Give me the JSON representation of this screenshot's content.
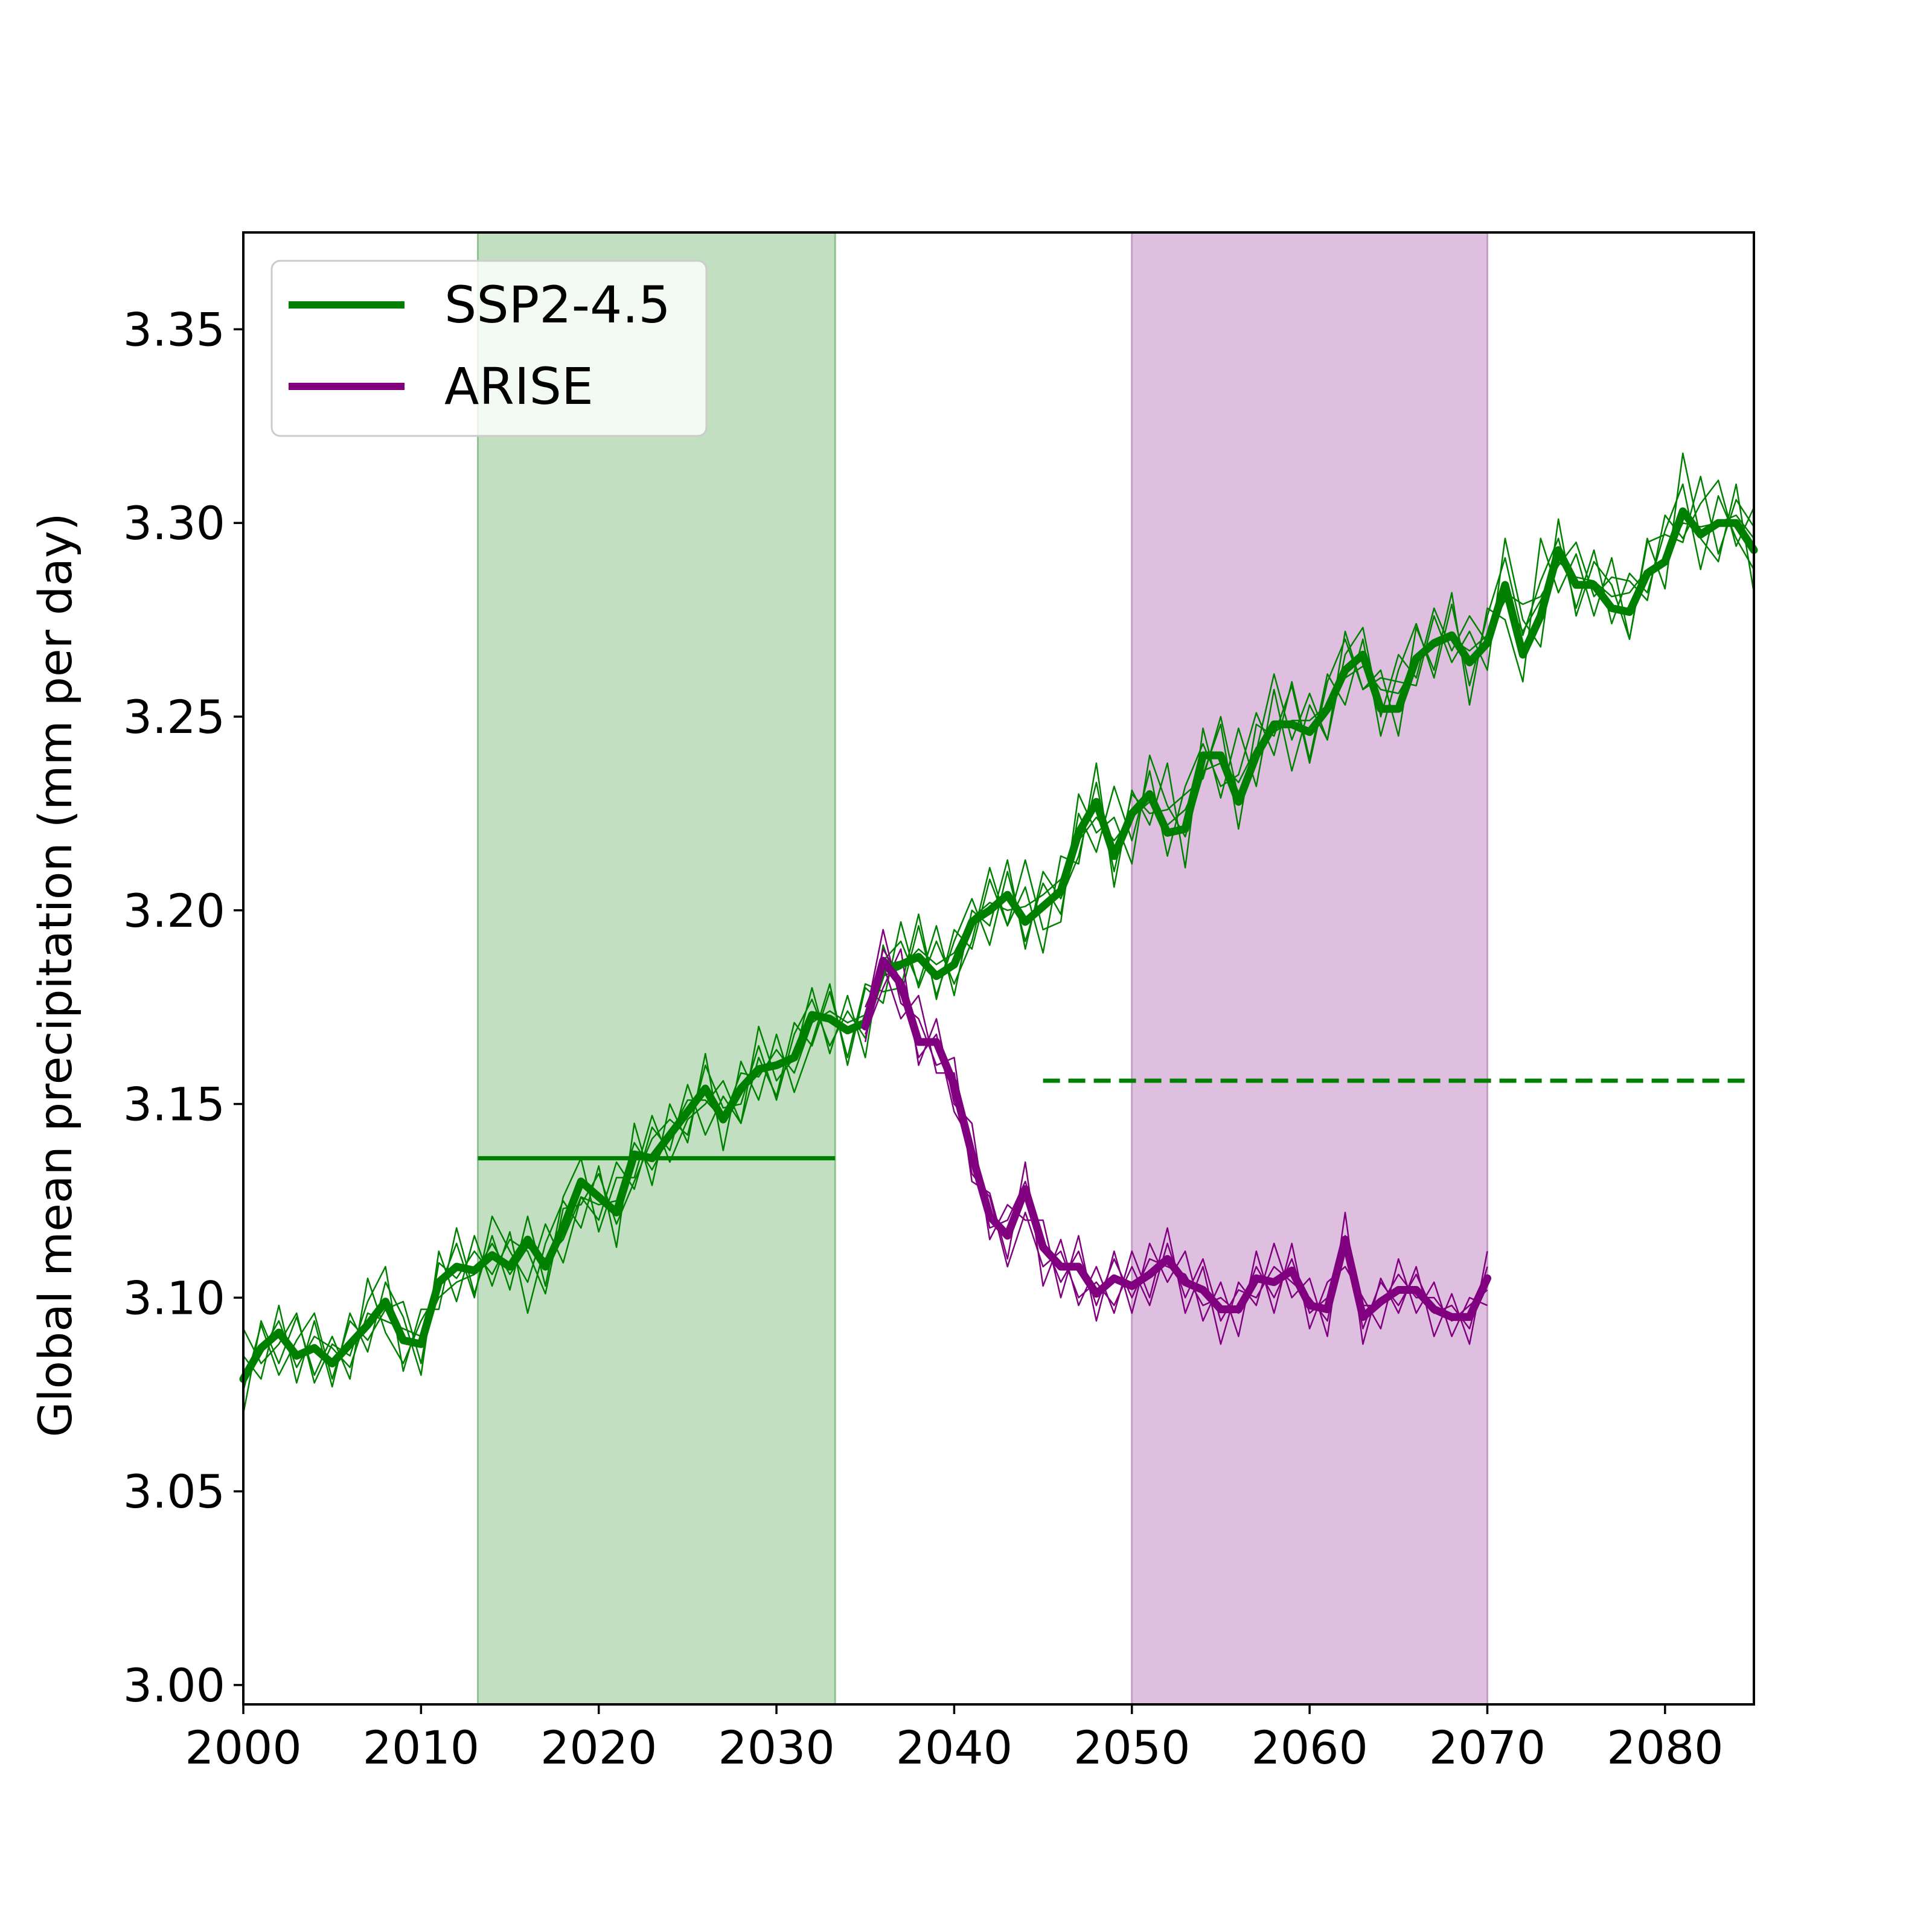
{
  "chart_data": {
    "type": "line",
    "title": "",
    "xlabel": "",
    "ylabel": "Global mean precipitation (mm per day)",
    "xlim": [
      2000,
      2085
    ],
    "ylim": [
      2.995,
      3.375
    ],
    "xticks": [
      "2000",
      "2010",
      "2020",
      "2030",
      "2040",
      "2050",
      "2060",
      "2070",
      "2080"
    ],
    "yticks": [
      "3.00",
      "3.05",
      "3.10",
      "3.15",
      "3.20",
      "3.25",
      "3.30",
      "3.35"
    ],
    "grid": false,
    "legend_position": "top-left",
    "shaded_periods": [
      {
        "series": "SSP2-4.5",
        "start": 2013.2,
        "end": 2033.3,
        "color": "#c2dfc2"
      },
      {
        "series": "ARISE",
        "start": 2050,
        "end": 2070,
        "color": "#dfbfdf"
      }
    ],
    "reference_lines": [
      {
        "series": "SSP2-4.5",
        "style": "solid",
        "y": 3.136,
        "x_start": 2013.2,
        "x_end": 2033.3
      },
      {
        "series": "SSP2-4.5",
        "style": "dashed",
        "y": 3.156,
        "x_start": 2045,
        "x_end": 2085
      }
    ],
    "series": [
      {
        "name": "SSP2-4.5",
        "color": "#008000",
        "role": "ensemble mean",
        "x": [
          2000,
          2001,
          2002,
          2003,
          2004,
          2005,
          2006,
          2007,
          2008,
          2009,
          2010,
          2011,
          2012,
          2013,
          2014,
          2015,
          2016,
          2017,
          2018,
          2019,
          2020,
          2021,
          2022,
          2023,
          2024,
          2025,
          2026,
          2027,
          2028,
          2029,
          2030,
          2031,
          2032,
          2033,
          2034,
          2035,
          2036,
          2037,
          2038,
          2039,
          2040,
          2041,
          2042,
          2043,
          2044,
          2045,
          2046,
          2047,
          2048,
          2049,
          2050,
          2051,
          2052,
          2053,
          2054,
          2055,
          2056,
          2057,
          2058,
          2059,
          2060,
          2061,
          2062,
          2063,
          2064,
          2065,
          2066,
          2067,
          2068,
          2069,
          2070,
          2071,
          2072,
          2073,
          2074,
          2075,
          2076,
          2077,
          2078,
          2079,
          2080,
          2081,
          2082,
          2083,
          2084,
          2085
        ],
        "values": [
          3.079,
          3.087,
          3.091,
          3.085,
          3.087,
          3.083,
          3.088,
          3.093,
          3.099,
          3.089,
          3.088,
          3.104,
          3.108,
          3.107,
          3.111,
          3.108,
          3.115,
          3.108,
          3.118,
          3.13,
          3.126,
          3.122,
          3.137,
          3.136,
          3.142,
          3.148,
          3.154,
          3.146,
          3.154,
          3.159,
          3.16,
          3.162,
          3.173,
          3.172,
          3.169,
          3.171,
          3.185,
          3.186,
          3.188,
          3.183,
          3.186,
          3.197,
          3.2,
          3.204,
          3.197,
          3.201,
          3.205,
          3.22,
          3.228,
          3.214,
          3.225,
          3.23,
          3.22,
          3.221,
          3.24,
          3.24,
          3.228,
          3.24,
          3.248,
          3.248,
          3.246,
          3.252,
          3.262,
          3.266,
          3.252,
          3.252,
          3.265,
          3.269,
          3.271,
          3.264,
          3.269,
          3.284,
          3.266,
          3.276,
          3.293,
          3.284,
          3.284,
          3.278,
          3.277,
          3.287,
          3.29,
          3.303,
          3.297,
          3.3,
          3.3,
          3.293
        ]
      },
      {
        "name": "ARISE",
        "color": "#800080",
        "role": "ensemble mean",
        "x": [
          2035,
          2036,
          2037,
          2038,
          2039,
          2040,
          2041,
          2042,
          2043,
          2044,
          2045,
          2046,
          2047,
          2048,
          2049,
          2050,
          2051,
          2052,
          2053,
          2054,
          2055,
          2056,
          2057,
          2058,
          2059,
          2060,
          2061,
          2062,
          2063,
          2064,
          2065,
          2066,
          2067,
          2068,
          2069,
          2070
        ],
        "values": [
          3.17,
          3.187,
          3.181,
          3.166,
          3.166,
          3.155,
          3.137,
          3.121,
          3.116,
          3.128,
          3.113,
          3.108,
          3.108,
          3.101,
          3.105,
          3.103,
          3.106,
          3.11,
          3.104,
          3.102,
          3.097,
          3.097,
          3.105,
          3.104,
          3.107,
          3.098,
          3.097,
          3.115,
          3.095,
          3.099,
          3.102,
          3.102,
          3.097,
          3.095,
          3.095,
          3.105
        ]
      }
    ],
    "ensemble_members": [
      {
        "series": "SSP2-4.5",
        "x": [
          2000,
          2001,
          2002,
          2003,
          2004,
          2005,
          2006,
          2007,
          2008,
          2009,
          2010,
          2011,
          2012,
          2013,
          2014,
          2015,
          2016,
          2017,
          2018,
          2019,
          2020,
          2021,
          2022,
          2023,
          2024,
          2025,
          2026,
          2027,
          2028,
          2029,
          2030,
          2031,
          2032,
          2033,
          2034,
          2035,
          2036,
          2037,
          2038,
          2039,
          2040,
          2041,
          2042,
          2043,
          2044,
          2045,
          2046,
          2047,
          2048,
          2049,
          2050,
          2051,
          2052,
          2053,
          2054,
          2055,
          2056,
          2057,
          2058,
          2059,
          2060,
          2061,
          2062,
          2063,
          2064,
          2065,
          2066,
          2067,
          2068,
          2069,
          2070,
          2071,
          2072,
          2073,
          2074,
          2075,
          2076,
          2077,
          2078,
          2079,
          2080,
          2081,
          2082,
          2083,
          2084,
          2085
        ],
        "members": [
          [
            3.07,
            3.094,
            3.083,
            3.095,
            3.08,
            3.09,
            3.079,
            3.105,
            3.091,
            3.083,
            3.094,
            3.102,
            3.114,
            3.1,
            3.121,
            3.112,
            3.104,
            3.119,
            3.109,
            3.126,
            3.12,
            3.135,
            3.128,
            3.144,
            3.138,
            3.155,
            3.142,
            3.152,
            3.145,
            3.17,
            3.156,
            3.162,
            3.18,
            3.163,
            3.178,
            3.162,
            3.191,
            3.178,
            3.196,
            3.178,
            3.192,
            3.203,
            3.191,
            3.21,
            3.192,
            3.207,
            3.199,
            3.225,
            3.215,
            3.232,
            3.218,
            3.236,
            3.214,
            3.232,
            3.243,
            3.232,
            3.235,
            3.251,
            3.24,
            3.259,
            3.239,
            3.261,
            3.253,
            3.27,
            3.245,
            3.262,
            3.274,
            3.26,
            3.279,
            3.258,
            3.276,
            3.291,
            3.271,
            3.285,
            3.296,
            3.278,
            3.293,
            3.274,
            3.287,
            3.282,
            3.298,
            3.31,
            3.288,
            3.307,
            3.296,
            3.288
          ],
          [
            3.085,
            3.079,
            3.098,
            3.078,
            3.094,
            3.077,
            3.096,
            3.086,
            3.104,
            3.095,
            3.08,
            3.112,
            3.099,
            3.116,
            3.103,
            3.117,
            3.096,
            3.114,
            3.125,
            3.118,
            3.134,
            3.113,
            3.145,
            3.129,
            3.15,
            3.14,
            3.163,
            3.138,
            3.161,
            3.151,
            3.168,
            3.153,
            3.166,
            3.181,
            3.16,
            3.18,
            3.176,
            3.197,
            3.18,
            3.192,
            3.181,
            3.192,
            3.211,
            3.196,
            3.206,
            3.189,
            3.214,
            3.212,
            3.238,
            3.206,
            3.231,
            3.222,
            3.238,
            3.211,
            3.247,
            3.229,
            3.247,
            3.232,
            3.257,
            3.236,
            3.253,
            3.244,
            3.272,
            3.257,
            3.262,
            3.245,
            3.273,
            3.262,
            3.282,
            3.253,
            3.278,
            3.275,
            3.259,
            3.296,
            3.282,
            3.292,
            3.276,
            3.291,
            3.27,
            3.296,
            3.283,
            3.318,
            3.296,
            3.29,
            3.31,
            3.282
          ],
          [
            3.092,
            3.083,
            3.088,
            3.096,
            3.078,
            3.088,
            3.085,
            3.099,
            3.108,
            3.081,
            3.097,
            3.097,
            3.118,
            3.101,
            3.116,
            3.102,
            3.121,
            3.103,
            3.126,
            3.136,
            3.117,
            3.131,
            3.131,
            3.147,
            3.135,
            3.146,
            3.15,
            3.156,
            3.145,
            3.162,
            3.152,
            3.171,
            3.165,
            3.179,
            3.162,
            3.181,
            3.179,
            3.18,
            3.199,
            3.177,
            3.195,
            3.19,
            3.208,
            3.196,
            3.213,
            3.195,
            3.197,
            3.23,
            3.22,
            3.224,
            3.212,
            3.24,
            3.227,
            3.219,
            3.235,
            3.248,
            3.221,
            3.248,
            3.245,
            3.258,
            3.238,
            3.259,
            3.27,
            3.257,
            3.26,
            3.259,
            3.258,
            3.276,
            3.264,
            3.272,
            3.262,
            3.296,
            3.275,
            3.268,
            3.301,
            3.276,
            3.29,
            3.284,
            3.27,
            3.295,
            3.297,
            3.295,
            3.312,
            3.292,
            3.306,
            3.299
          ],
          [
            3.076,
            3.093,
            3.08,
            3.089,
            3.096,
            3.079,
            3.094,
            3.089,
            3.097,
            3.099,
            3.083,
            3.109,
            3.105,
            3.112,
            3.106,
            3.115,
            3.112,
            3.101,
            3.123,
            3.124,
            3.132,
            3.119,
            3.13,
            3.141,
            3.146,
            3.142,
            3.16,
            3.149,
            3.15,
            3.165,
            3.151,
            3.168,
            3.177,
            3.165,
            3.174,
            3.167,
            3.187,
            3.192,
            3.181,
            3.196,
            3.178,
            3.2,
            3.196,
            3.213,
            3.19,
            3.21,
            3.203,
            3.214,
            3.233,
            3.21,
            3.23,
            3.225,
            3.226,
            3.23,
            3.234,
            3.25,
            3.229,
            3.241,
            3.261,
            3.244,
            3.256,
            3.244,
            3.266,
            3.273,
            3.25,
            3.266,
            3.26,
            3.278,
            3.267,
            3.276,
            3.269,
            3.282,
            3.279,
            3.281,
            3.289,
            3.295,
            3.281,
            3.286,
            3.285,
            3.28,
            3.302,
            3.296,
            3.305,
            3.311,
            3.294,
            3.304
          ],
          [
            3.081,
            3.086,
            3.094,
            3.082,
            3.09,
            3.087,
            3.082,
            3.096,
            3.094,
            3.092,
            3.09,
            3.1,
            3.104,
            3.106,
            3.114,
            3.106,
            3.113,
            3.11,
            3.115,
            3.126,
            3.124,
            3.125,
            3.14,
            3.133,
            3.142,
            3.151,
            3.151,
            3.146,
            3.158,
            3.157,
            3.164,
            3.158,
            3.171,
            3.174,
            3.171,
            3.173,
            3.183,
            3.185,
            3.19,
            3.186,
            3.189,
            3.198,
            3.202,
            3.2,
            3.201,
            3.204,
            3.208,
            3.218,
            3.224,
            3.218,
            3.224,
            3.228,
            3.222,
            3.226,
            3.236,
            3.238,
            3.233,
            3.242,
            3.246,
            3.249,
            3.249,
            3.253,
            3.26,
            3.263,
            3.257,
            3.256,
            3.264,
            3.268,
            3.27,
            3.267,
            3.271,
            3.28,
            3.272,
            3.28,
            3.29,
            3.286,
            3.285,
            3.281,
            3.282,
            3.288,
            3.291,
            3.3,
            3.299,
            3.3,
            3.302,
            3.296
          ]
        ]
      },
      {
        "series": "ARISE",
        "x": [
          2035,
          2036,
          2037,
          2038,
          2039,
          2040,
          2041,
          2042,
          2043,
          2044,
          2045,
          2046,
          2047,
          2048,
          2049,
          2050,
          2051,
          2052,
          2053,
          2054,
          2055,
          2056,
          2057,
          2058,
          2059,
          2060,
          2061,
          2062,
          2063,
          2064,
          2065,
          2066,
          2067,
          2068,
          2069,
          2070
        ],
        "members": [
          [
            3.172,
            3.195,
            3.176,
            3.172,
            3.16,
            3.162,
            3.13,
            3.127,
            3.11,
            3.135,
            3.103,
            3.115,
            3.098,
            3.108,
            3.096,
            3.112,
            3.1,
            3.118,
            3.096,
            3.108,
            3.088,
            3.104,
            3.098,
            3.114,
            3.1,
            3.105,
            3.09,
            3.122,
            3.088,
            3.105,
            3.096,
            3.108,
            3.09,
            3.101,
            3.088,
            3.112
          ],
          [
            3.168,
            3.18,
            3.19,
            3.16,
            3.172,
            3.15,
            3.145,
            3.115,
            3.124,
            3.12,
            3.12,
            3.1,
            3.116,
            3.094,
            3.112,
            3.096,
            3.114,
            3.104,
            3.112,
            3.094,
            3.104,
            3.09,
            3.112,
            3.096,
            3.114,
            3.092,
            3.104,
            3.108,
            3.1,
            3.092,
            3.11,
            3.096,
            3.104,
            3.09,
            3.1,
            3.098
          ],
          [
            3.175,
            3.186,
            3.172,
            3.178,
            3.158,
            3.158,
            3.132,
            3.126,
            3.108,
            3.122,
            3.108,
            3.112,
            3.1,
            3.104,
            3.098,
            3.108,
            3.098,
            3.114,
            3.1,
            3.11,
            3.094,
            3.102,
            3.1,
            3.108,
            3.104,
            3.1,
            3.094,
            3.116,
            3.092,
            3.104,
            3.098,
            3.106,
            3.096,
            3.098,
            3.092,
            3.108
          ],
          [
            3.166,
            3.19,
            3.182,
            3.162,
            3.168,
            3.148,
            3.14,
            3.118,
            3.12,
            3.13,
            3.115,
            3.104,
            3.112,
            3.098,
            3.11,
            3.1,
            3.11,
            3.108,
            3.106,
            3.098,
            3.1,
            3.096,
            3.108,
            3.1,
            3.11,
            3.096,
            3.1,
            3.112,
            3.098,
            3.098,
            3.106,
            3.1,
            3.1,
            3.094,
            3.098,
            3.102
          ],
          [
            3.17,
            3.187,
            3.181,
            3.166,
            3.166,
            3.155,
            3.137,
            3.121,
            3.116,
            3.128,
            3.113,
            3.108,
            3.108,
            3.101,
            3.105,
            3.103,
            3.106,
            3.11,
            3.104,
            3.102,
            3.097,
            3.097,
            3.105,
            3.104,
            3.107,
            3.098,
            3.097,
            3.115,
            3.095,
            3.099,
            3.102,
            3.102,
            3.097,
            3.095,
            3.095,
            3.105
          ]
        ]
      }
    ]
  }
}
